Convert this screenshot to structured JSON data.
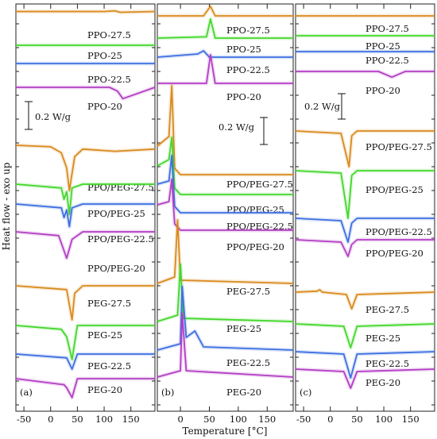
{
  "figure": {
    "ylabel": "Heat flow - exo up",
    "xlabel": "Temperature [°C]"
  },
  "chart_data": [
    {
      "type": "line",
      "panel": "(a)",
      "xlim": [
        -65,
        195
      ],
      "xticks": [
        -50,
        0,
        50,
        100,
        150
      ],
      "xlabel": "Temperature [°C]",
      "ylabel": "Heat flow - exo up",
      "scalebar": "0.2 W/g",
      "colors": {
        "27.5": "#d98a1e",
        "25": "#44d62c",
        "22.5": "#3d6fe0",
        "20": "#b33fc4"
      },
      "series": [
        {
          "name": "PPO-27.5",
          "x": [
            -65,
            0,
            100,
            120,
            130,
            195
          ],
          "y": [
            0.1,
            0.1,
            0.1,
            0.11,
            0.09,
            0.1
          ]
        },
        {
          "name": "PPO-25",
          "x": [
            -65,
            195
          ],
          "y": [
            0,
            0
          ]
        },
        {
          "name": "PPO-22.5",
          "x": [
            -65,
            195
          ],
          "y": [
            0,
            0
          ]
        },
        {
          "name": "PPO-20",
          "x": [
            -65,
            -30,
            110,
            125,
            135,
            195
          ],
          "y": [
            0,
            0,
            0,
            -0.05,
            -0.15,
            0
          ]
        },
        {
          "name": "PPO/PEG-27.5",
          "x": [
            -65,
            0,
            20,
            30,
            35,
            45,
            60,
            120,
            195
          ],
          "y": [
            0,
            -0.02,
            -0.1,
            -0.3,
            -0.6,
            -0.15,
            -0.05,
            -0.08,
            -0.05
          ]
        },
        {
          "name": "PPO/PEG-25",
          "x": [
            -65,
            20,
            25,
            30,
            35,
            40,
            60,
            195
          ],
          "y": [
            0,
            -0.05,
            -0.2,
            -0.1,
            -0.4,
            -0.05,
            0,
            0
          ]
        },
        {
          "name": "PPO/PEG-22.5",
          "x": [
            -65,
            20,
            25,
            30,
            35,
            40,
            60,
            195
          ],
          "y": [
            0,
            -0.05,
            -0.18,
            -0.08,
            -0.3,
            -0.05,
            0,
            0
          ]
        },
        {
          "name": "PPO/PEG-20",
          "x": [
            -65,
            15,
            25,
            30,
            40,
            60,
            195
          ],
          "y": [
            0,
            -0.05,
            -0.25,
            -0.35,
            -0.1,
            0,
            0
          ]
        },
        {
          "name": "PEG-27.5",
          "x": [
            -65,
            30,
            40,
            45,
            60,
            195
          ],
          "y": [
            0,
            -0.05,
            -0.45,
            -0.1,
            0,
            0
          ]
        },
        {
          "name": "PEG-25",
          "x": [
            -65,
            20,
            30,
            40,
            50,
            195
          ],
          "y": [
            0,
            -0.05,
            -0.15,
            -0.45,
            0,
            0
          ]
        },
        {
          "name": "PEG-22.5",
          "x": [
            -65,
            30,
            40,
            50,
            195
          ],
          "y": [
            0,
            -0.05,
            -0.2,
            0,
            0
          ]
        },
        {
          "name": "PEG-20",
          "x": [
            -65,
            25,
            30,
            40,
            50,
            195
          ],
          "y": [
            0,
            -0.08,
            -0.12,
            -0.25,
            0,
            0
          ]
        }
      ]
    },
    {
      "type": "line",
      "panel": "(b)",
      "xlim": [
        -40,
        195
      ],
      "xticks": [
        -50,
        0,
        50,
        100,
        150
      ],
      "xlabel": "Temperature [°C]",
      "ylabel": "Heat flow - exo up",
      "scalebar": "0.2 W/g",
      "colors": {
        "27.5": "#d98a1e",
        "25": "#44d62c",
        "22.5": "#3d6fe0",
        "20": "#b33fc4"
      },
      "series": [
        {
          "name": "PPO-27.5",
          "x": [
            -40,
            40,
            48,
            52,
            60,
            195
          ],
          "y": [
            0,
            0,
            0.1,
            0.15,
            0,
            0
          ]
        },
        {
          "name": "PPO-25",
          "x": [
            -40,
            45,
            52,
            60,
            195
          ],
          "y": [
            0,
            0.02,
            0.3,
            0,
            0
          ]
        },
        {
          "name": "PPO-22.5",
          "x": [
            -40,
            30,
            40,
            50,
            195
          ],
          "y": [
            0,
            0.05,
            0.1,
            0,
            0
          ]
        },
        {
          "name": "PPO-20",
          "x": [
            -40,
            45,
            52,
            60,
            195
          ],
          "y": [
            0,
            0,
            0.45,
            0,
            0
          ]
        },
        {
          "name": "PPO/PEG-27.5",
          "x": [
            -40,
            -20,
            -15,
            -10,
            0,
            195
          ],
          "y": [
            0.45,
            0.6,
            1.4,
            0.1,
            0,
            0
          ]
        },
        {
          "name": "PPO/PEG-25",
          "x": [
            -40,
            -20,
            -15,
            -10,
            0,
            195
          ],
          "y": [
            0.45,
            0.55,
            0.9,
            0.1,
            0,
            0
          ]
        },
        {
          "name": "PPO/PEG-22.5",
          "x": [
            -40,
            -20,
            -15,
            -10,
            0,
            195
          ],
          "y": [
            0.45,
            0.5,
            0.9,
            0.1,
            0,
            0
          ]
        },
        {
          "name": "PPO/PEG-20",
          "x": [
            -40,
            -20,
            -15,
            -10,
            0,
            195
          ],
          "y": [
            0.4,
            0.45,
            0.8,
            0.1,
            0,
            0
          ]
        },
        {
          "name": "PEG-27.5",
          "x": [
            -40,
            -10,
            -5,
            0,
            195
          ],
          "y": [
            0,
            0.1,
            1.0,
            0.05,
            0
          ]
        },
        {
          "name": "PEG-25",
          "x": [
            -40,
            -5,
            0,
            5,
            195
          ],
          "y": [
            0,
            0.1,
            0.9,
            0.05,
            0
          ]
        },
        {
          "name": "PEG-22.5",
          "x": [
            -40,
            0,
            3,
            10,
            25,
            40,
            195
          ],
          "y": [
            0,
            0.1,
            1.0,
            0.2,
            0.3,
            0.05,
            0
          ]
        },
        {
          "name": "PEG-20",
          "x": [
            -40,
            0,
            3,
            10,
            195
          ],
          "y": [
            0,
            0.1,
            1.0,
            0.1,
            0
          ]
        }
      ]
    },
    {
      "type": "line",
      "panel": "(c)",
      "xlim": [
        -65,
        195
      ],
      "xticks": [
        -50,
        0,
        50,
        100,
        150
      ],
      "xlabel": "Temperature [°C]",
      "ylabel": "Heat flow - exo up",
      "scalebar": "0.2 W/g",
      "colors": {
        "27.5": "#d98a1e",
        "25": "#44d62c",
        "22.5": "#3d6fe0",
        "20": "#b33fc4"
      },
      "series": [
        {
          "name": "PPO-27.5",
          "x": [
            -65,
            195
          ],
          "y": [
            0,
            0
          ]
        },
        {
          "name": "PPO-25",
          "x": [
            -65,
            195
          ],
          "y": [
            0,
            0
          ]
        },
        {
          "name": "PPO-22.5",
          "x": [
            -65,
            195
          ],
          "y": [
            0,
            0
          ]
        },
        {
          "name": "PPO-20",
          "x": [
            -65,
            90,
            115,
            140,
            195
          ],
          "y": [
            0,
            0,
            -0.12,
            0,
            0
          ]
        },
        {
          "name": "PPO/PEG-27.5",
          "x": [
            -65,
            20,
            35,
            40,
            50,
            195
          ],
          "y": [
            0,
            -0.05,
            -0.75,
            -0.1,
            0,
            0
          ]
        },
        {
          "name": "PPO/PEG-25",
          "x": [
            -65,
            20,
            33,
            40,
            50,
            195
          ],
          "y": [
            0,
            -0.05,
            -1.0,
            -0.1,
            0,
            0
          ]
        },
        {
          "name": "PPO/PEG-22.5",
          "x": [
            -65,
            20,
            33,
            40,
            50,
            195
          ],
          "y": [
            0,
            -0.05,
            -0.5,
            -0.1,
            0,
            0
          ]
        },
        {
          "name": "PPO/PEG-20",
          "x": [
            -65,
            20,
            33,
            40,
            50,
            195
          ],
          "y": [
            0,
            -0.05,
            -0.35,
            -0.1,
            0,
            0
          ]
        },
        {
          "name": "PEG-27.5",
          "x": [
            -65,
            -25,
            -20,
            -15,
            30,
            40,
            50,
            195
          ],
          "y": [
            0,
            0.02,
            0.05,
            0,
            -0.05,
            -0.35,
            -0.05,
            0
          ]
        },
        {
          "name": "PEG-25",
          "x": [
            -65,
            25,
            38,
            50,
            195
          ],
          "y": [
            0,
            -0.05,
            -0.5,
            -0.05,
            0
          ]
        },
        {
          "name": "PEG-22.5",
          "x": [
            -65,
            25,
            38,
            50,
            195
          ],
          "y": [
            0,
            -0.05,
            -0.55,
            -0.05,
            0
          ]
        },
        {
          "name": "PEG-20",
          "x": [
            -65,
            25,
            38,
            50,
            195
          ],
          "y": [
            0,
            -0.05,
            -0.4,
            -0.05,
            0
          ]
        }
      ]
    }
  ]
}
